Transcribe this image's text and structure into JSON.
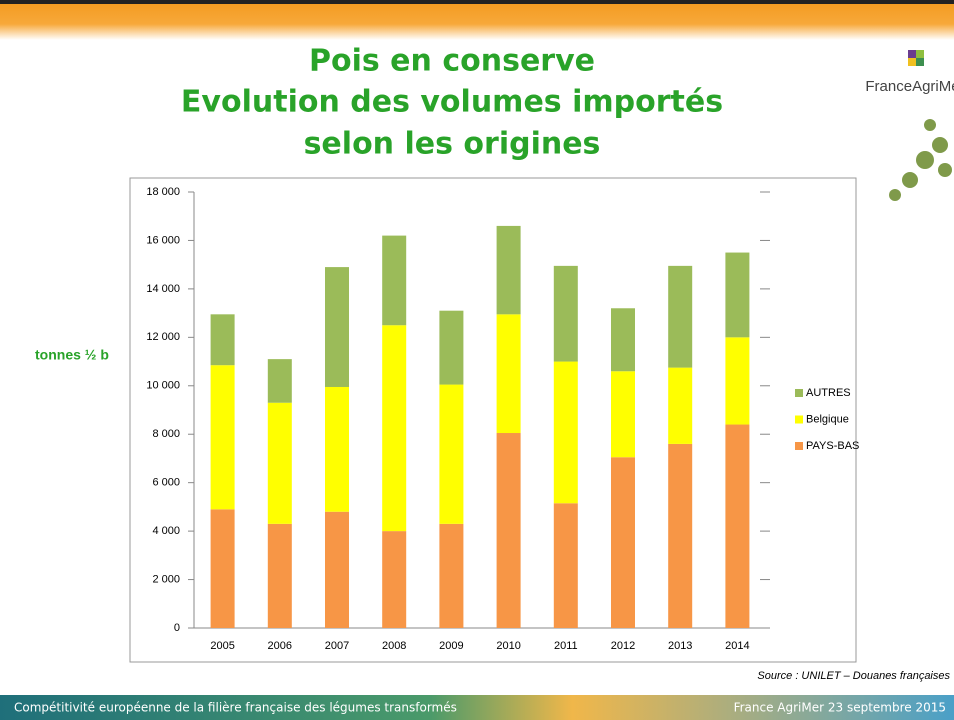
{
  "chart_data": {
    "type": "bar",
    "title": [
      "Pois en conserve",
      "Evolution des volumes importés",
      "selon les origines"
    ],
    "y_label": "tonnes ½ b",
    "categories": [
      "2005",
      "2006",
      "2007",
      "2008",
      "2009",
      "2010",
      "2011",
      "2012",
      "2013",
      "2014"
    ],
    "stacked": true,
    "series": [
      {
        "name": "PAYS-BAS",
        "color": "#f79646",
        "values": [
          4900,
          4300,
          4800,
          4000,
          4300,
          8050,
          5150,
          7050,
          7600,
          8400
        ]
      },
      {
        "name": "Belgique",
        "color": "#ffff00",
        "values": [
          5950,
          5000,
          5150,
          8500,
          5750,
          4900,
          5850,
          3550,
          3150,
          3600
        ]
      },
      {
        "name": "AUTRES",
        "color": "#9bbb59",
        "values": [
          2100,
          1800,
          4950,
          3700,
          3050,
          3650,
          3950,
          2600,
          4200,
          3500
        ]
      }
    ],
    "ylim": [
      0,
      18000
    ],
    "yticks": [
      0,
      {
        "value": 2000,
        "label": "2 000"
      },
      {
        "value": 4000,
        "label": "4 000"
      },
      {
        "value": 6000,
        "label": "6 000"
      },
      {
        "value": 8000,
        "label": "8 000"
      },
      {
        "value": 10000,
        "label": "10 000"
      },
      {
        "value": 12000,
        "label": "12 000"
      },
      {
        "value": 14000,
        "label": "14 000"
      },
      {
        "value": 16000,
        "label": "16 000"
      },
      {
        "value": 18000,
        "label": "18 000"
      }
    ],
    "legend": "right",
    "source": "Source : UNILET – Douanes  françaises"
  },
  "logo": "FranceAgriMer",
  "footer": {
    "left": "Compétitivité européenne de la filière française des légumes transformés",
    "right": "France AgriMer 23 septembre 2015"
  }
}
